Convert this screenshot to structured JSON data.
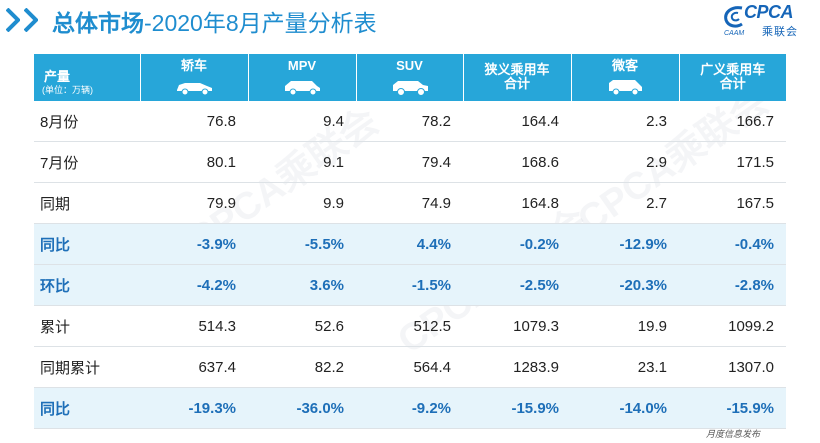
{
  "title": {
    "bold": "总体市场",
    "rest": "-2020年8月产量分析表"
  },
  "logo": {
    "text": "CPCA",
    "sub": "乘联会",
    "small": "CAAM"
  },
  "table": {
    "unit_label": "产量",
    "unit_sub": "(单位：万辆)",
    "columns": [
      {
        "label": "轿车",
        "icon": "sedan-car-icon"
      },
      {
        "label": "MPV",
        "icon": "mpv-car-icon"
      },
      {
        "label": "SUV",
        "icon": "suv-car-icon"
      },
      {
        "label": "狭义乘用车",
        "label2": "合计",
        "icon": ""
      },
      {
        "label": "微客",
        "icon": "minivan-icon"
      },
      {
        "label": "广义乘用车",
        "label2": "合计",
        "icon": ""
      }
    ],
    "rows": [
      {
        "label": "8月份",
        "values": [
          "76.8",
          "9.4",
          "78.2",
          "164.4",
          "2.3",
          "166.7"
        ],
        "pct": false
      },
      {
        "label": "7月份",
        "values": [
          "80.1",
          "9.1",
          "79.4",
          "168.6",
          "2.9",
          "171.5"
        ],
        "pct": false
      },
      {
        "label": "同期",
        "values": [
          "79.9",
          "9.9",
          "74.9",
          "164.8",
          "2.7",
          "167.5"
        ],
        "pct": false
      },
      {
        "label": "同比",
        "values": [
          "-3.9%",
          "-5.5%",
          "4.4%",
          "-0.2%",
          "-12.9%",
          "-0.4%"
        ],
        "pct": true
      },
      {
        "label": "环比",
        "values": [
          "-4.2%",
          "3.6%",
          "-1.5%",
          "-2.5%",
          "-20.3%",
          "-2.8%"
        ],
        "pct": true
      },
      {
        "label": "累计",
        "values": [
          "514.3",
          "52.6",
          "512.5",
          "1079.3",
          "19.9",
          "1099.2"
        ],
        "pct": false
      },
      {
        "label": "同期累计",
        "values": [
          "637.4",
          "82.2",
          "564.4",
          "1283.9",
          "23.1",
          "1307.0"
        ],
        "pct": false
      },
      {
        "label": "同比",
        "values": [
          "-19.3%",
          "-36.0%",
          "-9.2%",
          "-15.9%",
          "-14.0%",
          "-15.9%"
        ],
        "pct": true
      }
    ]
  },
  "watermark": "CPCA乘联会",
  "footer": "月度信息发布",
  "colors": {
    "header": "#27a6d9",
    "title": "#1f8dcf",
    "pct_row_bg": "#e6f4fb",
    "pct_text": "#1e6fb8"
  }
}
